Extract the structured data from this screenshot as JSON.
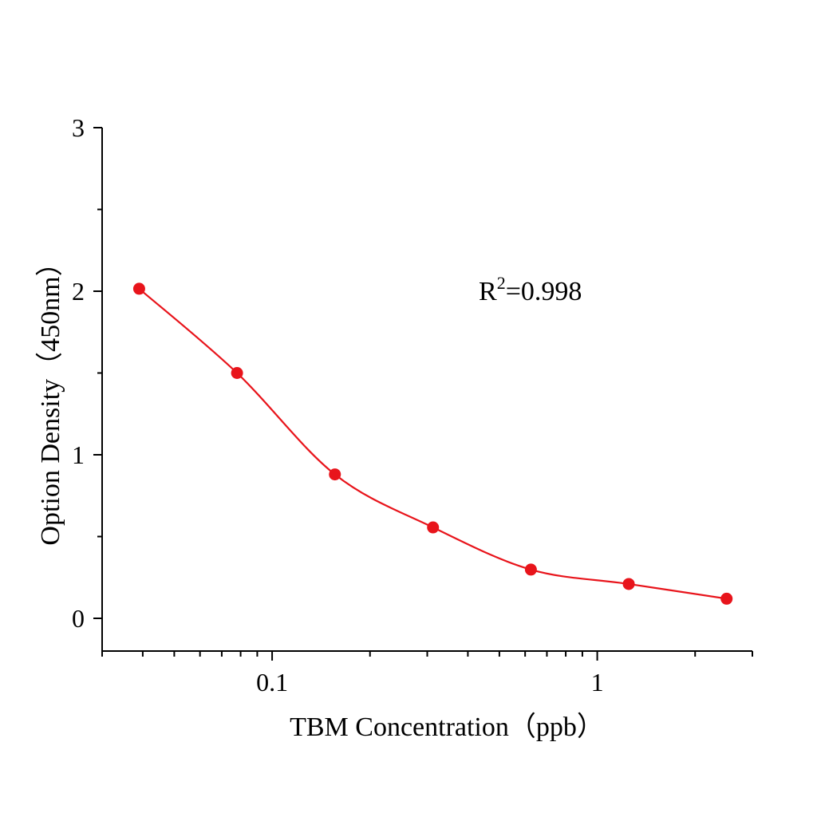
{
  "chart_data": {
    "type": "scatter",
    "xlabel": "TBM Concentration（ppb）",
    "ylabel": "Option Density（450nm）",
    "xscale": "log",
    "xlim": [
      0.03,
      3
    ],
    "ylim": [
      -0.2,
      3
    ],
    "xticks": [
      {
        "value": 0.1,
        "label": "0.1"
      },
      {
        "value": 1,
        "label": "1"
      }
    ],
    "yticks": [
      {
        "value": 0,
        "label": "0"
      },
      {
        "value": 1,
        "label": "1"
      },
      {
        "value": 2,
        "label": "2"
      },
      {
        "value": 3,
        "label": "3"
      }
    ],
    "grid": false,
    "annotation": {
      "prefix": "R",
      "sup": "2",
      "suffix": "=0.998"
    },
    "color": "#e8141b",
    "fit": "smooth curve",
    "x": [
      0.039,
      0.078,
      0.156,
      0.3125,
      0.625,
      1.25,
      2.5
    ],
    "y": [
      2.015,
      1.5,
      0.88,
      0.556,
      0.298,
      0.21,
      0.12
    ]
  }
}
